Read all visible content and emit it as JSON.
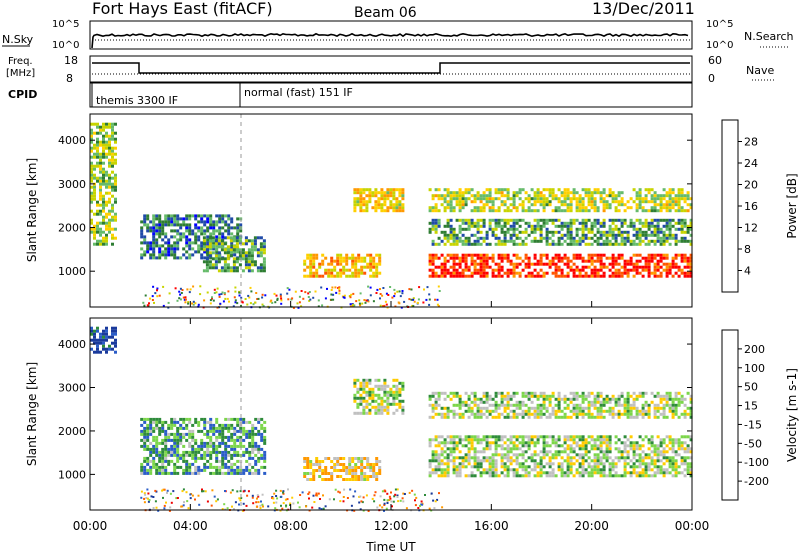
{
  "header": {
    "radar": "Fort Hays East (fitACF)",
    "beam": "Beam 06",
    "date": "13/Dec/2011"
  },
  "noise_panel": {
    "left_label": "N.Sky",
    "right_label": "N.Search",
    "left_ticks": [
      "10^5",
      "10^0"
    ],
    "right_ticks": [
      "10^5",
      "10^0"
    ]
  },
  "freq_panel": {
    "left_label_line1": "Freq.",
    "left_label_line2": "[MHz]",
    "right_label": "Nave",
    "left_ticks": [
      "18",
      "8"
    ],
    "right_ticks": [
      "60",
      "0"
    ]
  },
  "cpid_panel": {
    "label": "CPID",
    "modes": [
      "themis 3300 IF",
      "normal (fast) 151 IF"
    ]
  },
  "chart_data": [
    {
      "type": "heatmap",
      "title": "Power",
      "ylabel": "Slant Range [km]",
      "xlabel": "",
      "ylim": [
        180,
        4600
      ],
      "y_ticks": [
        "1000",
        "2000",
        "3000",
        "4000"
      ],
      "colorbar": {
        "label": "Power [dB]",
        "ticks": [
          "28",
          "24",
          "20",
          "16",
          "12",
          "8",
          "4"
        ],
        "colors": [
          "#0000ff",
          "#1f4aa8",
          "#2e7d32",
          "#66bb6a",
          "#c8d400",
          "#ffd000",
          "#ff9900",
          "#ff5500",
          "#ff0000"
        ]
      },
      "bands": [
        {
          "t_start": 0.0,
          "t_end": 1.0,
          "r_low": 1600,
          "r_high": 4400,
          "level": 0.45
        },
        {
          "t_start": 2.0,
          "t_end": 6.0,
          "r_low": 1300,
          "r_high": 2300,
          "level": 0.25
        },
        {
          "t_start": 4.5,
          "t_end": 7.0,
          "r_low": 1000,
          "r_high": 1800,
          "level": 0.35
        },
        {
          "t_start": 8.5,
          "t_end": 11.5,
          "r_low": 900,
          "r_high": 1400,
          "level": 0.65
        },
        {
          "t_start": 10.5,
          "t_end": 12.5,
          "r_low": 2400,
          "r_high": 2900,
          "level": 0.6
        },
        {
          "t_start": 13.5,
          "t_end": 24.0,
          "r_low": 900,
          "r_high": 1400,
          "level": 0.9
        },
        {
          "t_start": 13.5,
          "t_end": 24.0,
          "r_low": 1600,
          "r_high": 2200,
          "level": 0.35
        },
        {
          "t_start": 13.5,
          "t_end": 24.0,
          "r_low": 2400,
          "r_high": 2900,
          "level": 0.5
        }
      ]
    },
    {
      "type": "heatmap",
      "title": "Velocity",
      "ylabel": "Slant Range [km]",
      "xlabel": "Time UT",
      "ylim": [
        180,
        4600
      ],
      "y_ticks": [
        "1000",
        "2000",
        "3000",
        "4000"
      ],
      "x_ticks": [
        "00:00",
        "04:00",
        "08:00",
        "12:00",
        "16:00",
        "20:00",
        "00:00"
      ],
      "colorbar": {
        "label": "Velocity [m s-1]",
        "ticks": [
          "200",
          "100",
          "50",
          "15",
          "-15",
          "-50",
          "-100",
          "-200"
        ],
        "colors": [
          "#1a3a9c",
          "#2a5cc8",
          "#2e8b3a",
          "#7cd64a",
          "#c0c0c0",
          "#ffcc00",
          "#ff9900",
          "#ff5500",
          "#ee0000"
        ]
      },
      "bands": [
        {
          "t_start": 0.0,
          "t_end": 1.0,
          "r_low": 3800,
          "r_high": 4400,
          "level": 0.1
        },
        {
          "t_start": 2.0,
          "t_end": 7.0,
          "r_low": 1000,
          "r_high": 2300,
          "level": 0.3
        },
        {
          "t_start": 8.5,
          "t_end": 11.5,
          "r_low": 900,
          "r_high": 1400,
          "level": 0.6
        },
        {
          "t_start": 10.5,
          "t_end": 12.5,
          "r_low": 2400,
          "r_high": 3200,
          "level": 0.45
        },
        {
          "t_start": 13.5,
          "t_end": 24.0,
          "r_low": 1000,
          "r_high": 1900,
          "level": 0.45
        },
        {
          "t_start": 13.5,
          "t_end": 24.0,
          "r_low": 2300,
          "r_high": 2900,
          "level": 0.45
        }
      ]
    }
  ]
}
